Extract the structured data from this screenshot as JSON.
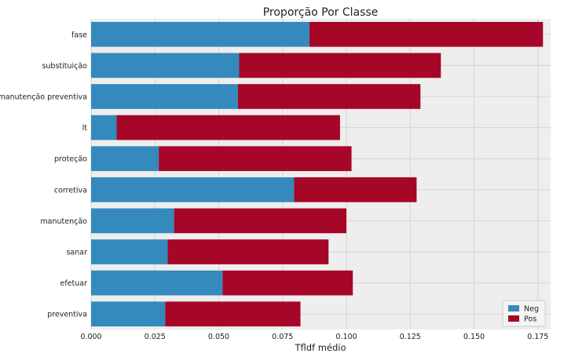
{
  "chart_data": {
    "type": "bar",
    "orientation": "horizontal",
    "stacked": true,
    "title": "Proporção Por Classe",
    "xlabel": "Tfldf médio",
    "ylabel": "",
    "xlim": [
      0,
      0.18
    ],
    "xticks": [
      "0.000",
      "0.025",
      "0.050",
      "0.075",
      "0.100",
      "0.125",
      "0.150",
      "0.175"
    ],
    "grid": true,
    "legend_position": "bottom-right",
    "categories": [
      "fase",
      "substituição",
      "manutenção preventiva",
      "lt",
      "proteção",
      "corretiva",
      "manutenção",
      "sanar",
      "efetuar",
      "preventiva"
    ],
    "series": [
      {
        "name": "Neg",
        "color": "#348abd",
        "values": [
          0.0855,
          0.058,
          0.0575,
          0.01,
          0.0265,
          0.0795,
          0.0325,
          0.03,
          0.0515,
          0.029
        ]
      },
      {
        "name": "Pos",
        "color": "#a60628",
        "values": [
          0.0915,
          0.079,
          0.0715,
          0.0875,
          0.0755,
          0.048,
          0.0675,
          0.063,
          0.051,
          0.053
        ]
      }
    ]
  }
}
